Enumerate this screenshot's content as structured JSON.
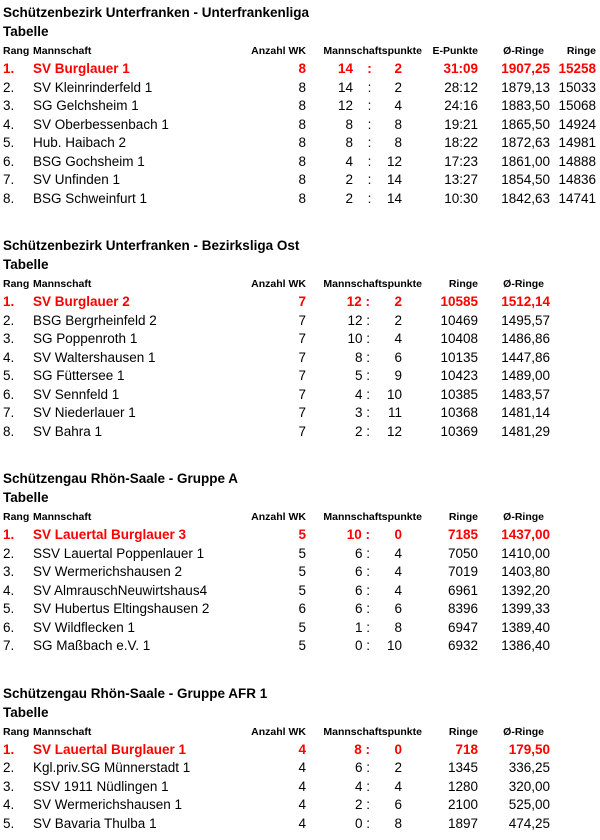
{
  "accent_red": "#fe0000",
  "sections": [
    {
      "title": "Schützenbezirk Unterfranken - Unterfrankenliga",
      "subtitle": "Tabelle",
      "points_style": "spread",
      "points_separator": ":",
      "headers": {
        "rang": "Rang",
        "mannschaft": "Mannschaft",
        "wk": "Anzahl WK",
        "punkte": "Mannschaftspunkte",
        "a": "E-Punkte",
        "b": "Ø-Ringe",
        "c": "Ringe"
      },
      "rows": [
        {
          "rang": "1.",
          "name": "SV Burglauer 1",
          "wk": "8",
          "p1": "14",
          "p2": "2",
          "a": "31:09",
          "b": "1907,25",
          "c": "15258",
          "highlight": true
        },
        {
          "rang": "2.",
          "name": "SV Kleinrinderfeld 1",
          "wk": "8",
          "p1": "14",
          "p2": "2",
          "a": "28:12",
          "b": "1879,13",
          "c": "15033",
          "highlight": false
        },
        {
          "rang": "3.",
          "name": "SG Gelchsheim 1",
          "wk": "8",
          "p1": "12",
          "p2": "4",
          "a": "24:16",
          "b": "1883,50",
          "c": "15068",
          "highlight": false
        },
        {
          "rang": "4.",
          "name": "SV Oberbessenbach 1",
          "wk": "8",
          "p1": "8",
          "p2": "8",
          "a": "19:21",
          "b": "1865,50",
          "c": "14924",
          "highlight": false
        },
        {
          "rang": "5.",
          "name": "Hub. Haibach 2",
          "wk": "8",
          "p1": "8",
          "p2": "8",
          "a": "18:22",
          "b": "1872,63",
          "c": "14981",
          "highlight": false
        },
        {
          "rang": "6.",
          "name": "BSG Gochsheim 1",
          "wk": "8",
          "p1": "4",
          "p2": "12",
          "a": "17:23",
          "b": "1861,00",
          "c": "14888",
          "highlight": false
        },
        {
          "rang": "7.",
          "name": "SV Unfinden 1",
          "wk": "8",
          "p1": "2",
          "p2": "14",
          "a": "13:27",
          "b": "1854,50",
          "c": "14836",
          "highlight": false
        },
        {
          "rang": "8.",
          "name": "BSG Schweinfurt 1",
          "wk": "8",
          "p1": "2",
          "p2": "14",
          "a": "10:30",
          "b": "1842,63",
          "c": "14741",
          "highlight": false
        }
      ]
    },
    {
      "title": "Schützenbezirk Unterfranken - Bezirksliga Ost",
      "subtitle": "Tabelle",
      "points_style": "tight",
      "points_separator": ":",
      "headers": {
        "rang": "Rang",
        "mannschaft": "Mannschaft",
        "wk": "Anzahl WK",
        "punkte": "Mannschaftspunkte",
        "a": "Ringe",
        "b": "Ø-Ringe"
      },
      "rows": [
        {
          "rang": "1.",
          "name": "SV Burglauer 2",
          "wk": "7",
          "p1": "12",
          "p2": "2",
          "a": "10585",
          "b": "1512,14",
          "highlight": true
        },
        {
          "rang": "2.",
          "name": "BSG Bergrheinfeld 2",
          "wk": "7",
          "p1": "12",
          "p2": "2",
          "a": "10469",
          "b": "1495,57",
          "highlight": false
        },
        {
          "rang": "3.",
          "name": "SG Poppenroth 1",
          "wk": "7",
          "p1": "10",
          "p2": "4",
          "a": "10408",
          "b": "1486,86",
          "highlight": false
        },
        {
          "rang": "4.",
          "name": "SV Waltershausen 1",
          "wk": "7",
          "p1": "8",
          "p2": "6",
          "a": "10135",
          "b": "1447,86",
          "highlight": false
        },
        {
          "rang": "5.",
          "name": "SG Füttersee 1",
          "wk": "7",
          "p1": "5",
          "p2": "9",
          "a": "10423",
          "b": "1489,00",
          "highlight": false
        },
        {
          "rang": "6.",
          "name": "SV Sennfeld 1",
          "wk": "7",
          "p1": "4",
          "p2": "10",
          "a": "10385",
          "b": "1483,57",
          "highlight": false
        },
        {
          "rang": "7.",
          "name": "SV Niederlauer 1",
          "wk": "7",
          "p1": "3",
          "p2": "11",
          "a": "10368",
          "b": "1481,14",
          "highlight": false
        },
        {
          "rang": "8.",
          "name": "SV Bahra 1",
          "wk": "7",
          "p1": "2",
          "p2": "12",
          "a": "10369",
          "b": "1481,29",
          "highlight": false
        }
      ]
    },
    {
      "title": "Schützengau Rhön-Saale - Gruppe A",
      "subtitle": "Tabelle",
      "points_style": "tight",
      "points_separator": ":",
      "headers": {
        "rang": "Rang",
        "mannschaft": "Mannschaft",
        "wk": "Anzahl WK",
        "punkte": "Mannschaftspunkte",
        "a": "Ringe",
        "b": "Ø-Ringe"
      },
      "rows": [
        {
          "rang": "1.",
          "name": "SV Lauertal Burglauer 3",
          "wk": "5",
          "p1": "10",
          "p2": "0",
          "a": "7185",
          "b": "1437,00",
          "highlight": true
        },
        {
          "rang": "2.",
          "name": "SSV Lauertal Poppenlauer 1",
          "wk": "5",
          "p1": "6",
          "p2": "4",
          "a": "7050",
          "b": "1410,00",
          "highlight": false
        },
        {
          "rang": "3.",
          "name": "SV Wermerichshausen 2",
          "wk": "5",
          "p1": "6",
          "p2": "4",
          "a": "7019",
          "b": "1403,80",
          "highlight": false
        },
        {
          "rang": "4.",
          "name": "SV AlmrauschNeuwirtshaus4",
          "wk": "5",
          "p1": "6",
          "p2": "4",
          "a": "6961",
          "b": "1392,20",
          "highlight": false
        },
        {
          "rang": "5.",
          "name": "SV Hubertus Eltingshausen 2",
          "wk": "6",
          "p1": "6",
          "p2": "6",
          "a": "8396",
          "b": "1399,33",
          "highlight": false
        },
        {
          "rang": "6.",
          "name": "SV Wildflecken 1",
          "wk": "5",
          "p1": "1",
          "p2": "8",
          "a": "6947",
          "b": "1389,40",
          "highlight": false
        },
        {
          "rang": "7.",
          "name": "SG Maßbach e.V. 1",
          "wk": "5",
          "p1": "0",
          "p2": "10",
          "a": "6932",
          "b": "1386,40",
          "highlight": false
        }
      ]
    },
    {
      "title": "Schützengau Rhön-Saale - Gruppe AFR 1",
      "subtitle": "Tabelle",
      "points_style": "tight",
      "points_separator": ":",
      "headers": {
        "rang": "Rang",
        "mannschaft": "Mannschaft",
        "wk": "Anzahl WK",
        "punkte": "Mannschaftspunkte",
        "a": "Ringe",
        "b": "Ø-Ringe"
      },
      "rows": [
        {
          "rang": "1.",
          "name": "SV Lauertal Burglauer 1",
          "wk": "4",
          "p1": "8",
          "p2": "0",
          "a": "718",
          "b": "179,50",
          "highlight": true
        },
        {
          "rang": "2.",
          "name": "Kgl.priv.SG Münnerstadt 1",
          "wk": "4",
          "p1": "6",
          "p2": "2",
          "a": "1345",
          "b": "336,25",
          "highlight": false
        },
        {
          "rang": "3.",
          "name": "SSV 1911 Nüdlingen 1",
          "wk": "4",
          "p1": "4",
          "p2": "4",
          "a": "1280",
          "b": "320,00",
          "highlight": false
        },
        {
          "rang": "4.",
          "name": "SV Wermerichshausen 1",
          "wk": "4",
          "p1": "2",
          "p2": "6",
          "a": "2100",
          "b": "525,00",
          "highlight": false
        },
        {
          "rang": "5.",
          "name": "SV Bavaria Thulba 1",
          "wk": "4",
          "p1": "0",
          "p2": "8",
          "a": "1897",
          "b": "474,25",
          "highlight": false
        }
      ]
    }
  ]
}
